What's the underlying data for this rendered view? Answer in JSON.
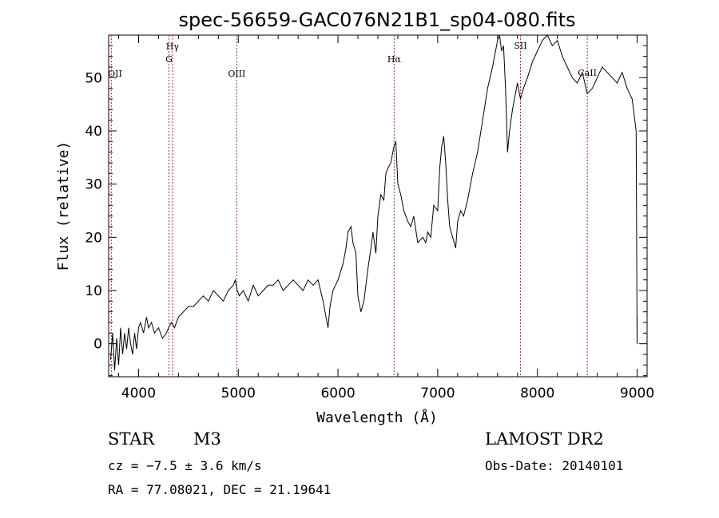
{
  "chart_data": {
    "type": "line",
    "title": "spec-56659-GAC076N21B1_sp04-080.fits",
    "xlabel": "Wavelength (Å)",
    "ylabel": "Flux (relative)",
    "xlim": [
      3700,
      9100
    ],
    "ylim": [
      -6.2,
      58
    ],
    "xticks": [
      4000,
      5000,
      6000,
      7000,
      8000,
      9000
    ],
    "yticks": [
      0,
      10,
      20,
      30,
      40,
      50
    ],
    "grid": false,
    "line_color": "#000000",
    "marker_color": "#b03030",
    "lines": [
      {
        "name": "OII",
        "x": 3727
      },
      {
        "name": "Hγ",
        "x": 4340
      },
      {
        "name": "G",
        "x": 4305
      },
      {
        "name": "OIII",
        "x": 4985
      },
      {
        "name": "Hα",
        "x": 6563
      },
      {
        "name": "SII",
        "x": 7830
      },
      {
        "name": "CaII",
        "x": 8500
      }
    ],
    "series": [
      {
        "x": [
          3720,
          3740,
          3760,
          3780,
          3800,
          3820,
          3840,
          3860,
          3880,
          3900,
          3920,
          3940,
          3960,
          3980,
          4000,
          4020,
          4050,
          4080,
          4100,
          4130,
          4160,
          4200,
          4240,
          4280,
          4300,
          4330,
          4360,
          4400,
          4450,
          4500,
          4550,
          4600,
          4650,
          4700,
          4750,
          4800,
          4850,
          4900,
          4950,
          4970,
          4990,
          5010,
          5050,
          5100,
          5150,
          5200,
          5250,
          5300,
          5350,
          5400,
          5450,
          5500,
          5550,
          5600,
          5650,
          5700,
          5750,
          5800,
          5850,
          5880,
          5900,
          5920,
          5950,
          6000,
          6050,
          6080,
          6100,
          6130,
          6150,
          6180,
          6200,
          6230,
          6260,
          6300,
          6330,
          6350,
          6380,
          6400,
          6430,
          6460,
          6480,
          6500,
          6530,
          6560,
          6580,
          6600,
          6630,
          6660,
          6700,
          6730,
          6760,
          6800,
          6850,
          6880,
          6900,
          6930,
          6960,
          7000,
          7020,
          7040,
          7060,
          7080,
          7100,
          7120,
          7150,
          7180,
          7200,
          7230,
          7260,
          7300,
          7350,
          7400,
          7450,
          7500,
          7550,
          7580,
          7600,
          7620,
          7640,
          7660,
          7680,
          7700,
          7720,
          7750,
          7780,
          7800,
          7830,
          7860,
          7900,
          7950,
          8000,
          8050,
          8100,
          8150,
          8200,
          8250,
          8300,
          8350,
          8400,
          8450,
          8500,
          8550,
          8600,
          8650,
          8700,
          8750,
          8800,
          8850,
          8900,
          8950,
          8990,
          9000,
          9000
        ],
        "y": [
          -3,
          2,
          -5,
          1,
          -4,
          3,
          -2,
          2,
          -1,
          3,
          0,
          -2,
          2,
          -1,
          3,
          4,
          2,
          5,
          3,
          4,
          2,
          3,
          1,
          2,
          3,
          4,
          3,
          5,
          6,
          7,
          7,
          8,
          9,
          8,
          10,
          9,
          8,
          10,
          11,
          12,
          10,
          9,
          10,
          8,
          11,
          9,
          10,
          11,
          11,
          12,
          10,
          11,
          12,
          11,
          10,
          12,
          11,
          12,
          8,
          5,
          3,
          7,
          10,
          12,
          15,
          18,
          21,
          22,
          19,
          17,
          9,
          6,
          8,
          14,
          18,
          21,
          17,
          24,
          28,
          27,
          32,
          33,
          34,
          37,
          38,
          30,
          28,
          25,
          23,
          22,
          24,
          19,
          20,
          19,
          21,
          20,
          26,
          25,
          33,
          37,
          39,
          34,
          27,
          22,
          20,
          18,
          23,
          25,
          24,
          27,
          32,
          36,
          42,
          48,
          52,
          55,
          57,
          58,
          55,
          56,
          48,
          36,
          40,
          44,
          47,
          49,
          46,
          48,
          50,
          53,
          55,
          57,
          58,
          56,
          57,
          54,
          52,
          50,
          49,
          51,
          47,
          48,
          50,
          52,
          51,
          50,
          49,
          51,
          48,
          46,
          40,
          0,
          5
        ]
      }
    ]
  },
  "info": {
    "class_label": "STAR",
    "subclass_label": "M3",
    "survey": "LAMOST DR2",
    "cz": "cz = −7.5 ± 3.6 km/s",
    "obs_date": "Obs-Date: 20140101",
    "radec": "RA =  77.08021, DEC =  21.19641"
  }
}
